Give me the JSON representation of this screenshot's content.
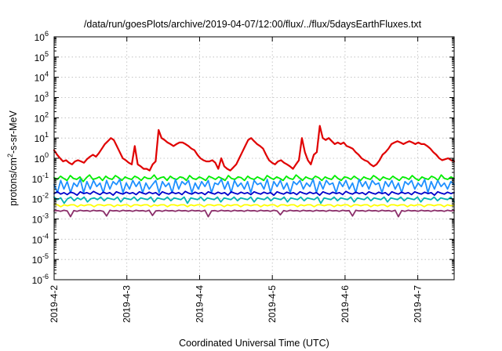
{
  "chart_data": {
    "type": "line",
    "title": "/data/run/goesPlots/archive/2019-04-07/12:00/flux/../flux/5daysEarthFluxes.txt",
    "xlabel": "Coordinated Universal Time (UTC)",
    "ylabel": {
      "prefix": "protons/cm",
      "sup": "2",
      "suffix": "-s-sr-MeV"
    },
    "yscale": "log",
    "ylim": [
      1e-06,
      1000000.0
    ],
    "yticks": [
      {
        "exp": "-6",
        "value": 1e-06
      },
      {
        "exp": "-5",
        "value": 1e-05
      },
      {
        "exp": "-4",
        "value": 0.0001
      },
      {
        "exp": "-3",
        "value": 0.001
      },
      {
        "exp": "-2",
        "value": 0.01
      },
      {
        "exp": "-1",
        "value": 0.1
      },
      {
        "exp": "0",
        "value": 1
      },
      {
        "exp": "1",
        "value": 10
      },
      {
        "exp": "2",
        "value": 100
      },
      {
        "exp": "3",
        "value": 1000
      },
      {
        "exp": "4",
        "value": 10000.0
      },
      {
        "exp": "5",
        "value": 100000.0
      },
      {
        "exp": "6",
        "value": 1000000.0
      }
    ],
    "ytick_base": "10",
    "xlim": [
      "2019-04-02T00:00",
      "2019-04-07T12:00"
    ],
    "xticks": [
      "2019-4-2",
      "2019-4-3",
      "2019-4-4",
      "2019-4-5",
      "2019-4-6",
      "2019-4-7"
    ],
    "grid": true,
    "series": [
      {
        "color": "#e00000",
        "x_start": "2019-04-02T00:00",
        "x_end": "2019-04-07T12:00",
        "values": [
          2.5,
          1.5,
          1.0,
          0.7,
          0.8,
          0.6,
          0.5,
          0.7,
          0.8,
          0.7,
          0.6,
          0.9,
          1.2,
          1.5,
          1.2,
          1.8,
          3.0,
          5.0,
          7.0,
          10.0,
          8.0,
          4.0,
          2.0,
          1.0,
          0.8,
          0.6,
          0.5,
          4.0,
          0.5,
          0.4,
          0.3,
          0.3,
          0.25,
          0.5,
          0.7,
          25.0,
          10.0,
          8.0,
          6.0,
          5.0,
          4.0,
          5.0,
          6.0,
          6.0,
          5.0,
          4.0,
          3.0,
          2.5,
          1.5,
          1.0,
          0.8,
          0.7,
          0.7,
          0.8,
          0.6,
          0.3,
          1.0,
          0.4,
          0.3,
          0.25,
          0.35,
          0.5,
          1.0,
          2.0,
          4.0,
          8.0,
          10.0,
          7.0,
          5.0,
          4.0,
          3.0,
          1.5,
          0.8,
          0.6,
          0.5,
          0.7,
          0.8,
          0.6,
          0.5,
          0.4,
          0.3,
          0.5,
          0.8,
          10.0,
          2.0,
          0.8,
          0.5,
          1.5,
          2.0,
          40.0,
          10.0,
          8.0,
          10.0,
          7.0,
          5.0,
          6.0,
          5.0,
          6.0,
          4.0,
          3.5,
          3.0,
          2.0,
          1.5,
          1.0,
          0.8,
          0.7,
          0.5,
          0.4,
          0.5,
          0.8,
          1.5,
          2.0,
          3.0,
          5.0,
          6.0,
          7.0,
          6.0,
          5.0,
          6.0,
          7.0,
          6.0,
          5.0,
          6.0,
          5.0,
          5.0,
          4.0,
          3.0,
          2.0,
          1.5,
          1.0,
          0.8,
          0.9,
          1.0,
          0.8,
          0.7
        ]
      },
      {
        "color": "#00ee00",
        "x_start": "2019-04-02T00:00",
        "x_end": "2019-04-07T12:00",
        "values": [
          0.11,
          0.09,
          0.13,
          0.1,
          0.08,
          0.14,
          0.1,
          0.09,
          0.12,
          0.07,
          0.11,
          0.15,
          0.09,
          0.1,
          0.12,
          0.08,
          0.13,
          0.1,
          0.09,
          0.14,
          0.11,
          0.08,
          0.12,
          0.1,
          0.09,
          0.13,
          0.11,
          0.08,
          0.12,
          0.1,
          0.1,
          0.15,
          0.09,
          0.11,
          0.12,
          0.08,
          0.13,
          0.1,
          0.09,
          0.12,
          0.11,
          0.08,
          0.14,
          0.1,
          0.09,
          0.12,
          0.1,
          0.08,
          0.13,
          0.11,
          0.09,
          0.12,
          0.1,
          0.08,
          0.14,
          0.1,
          0.09,
          0.12,
          0.11,
          0.08,
          0.13,
          0.1,
          0.09,
          0.12,
          0.1,
          0.08,
          0.14,
          0.11,
          0.09,
          0.12,
          0.1,
          0.08,
          0.13,
          0.1,
          0.09,
          0.15,
          0.11,
          0.08,
          0.12,
          0.1,
          0.09,
          0.13,
          0.11,
          0.08,
          0.12,
          0.1,
          0.09,
          0.14,
          0.1,
          0.08,
          0.12,
          0.11,
          0.09,
          0.13,
          0.1,
          0.08,
          0.12,
          0.1,
          0.09,
          0.14,
          0.11,
          0.08,
          0.12,
          0.1,
          0.09,
          0.13,
          0.1,
          0.08,
          0.12,
          0.11,
          0.09,
          0.14,
          0.1,
          0.08,
          0.12,
          0.1,
          0.09,
          0.13,
          0.11,
          0.08,
          0.15,
          0.1,
          0.09,
          0.12,
          0.1
        ]
      },
      {
        "color": "#1e90ff",
        "x_start": "2019-04-02T00:00",
        "x_end": "2019-04-07T12:00",
        "values": [
          0.05,
          0.02,
          0.08,
          0.03,
          0.07,
          0.02,
          0.06,
          0.04,
          0.09,
          0.02,
          0.07,
          0.03,
          0.08,
          0.04,
          0.06,
          0.02,
          0.08,
          0.03,
          0.07,
          0.05,
          0.09,
          0.02,
          0.06,
          0.03,
          0.08,
          0.04,
          0.07,
          0.02,
          0.06,
          0.03,
          0.05,
          0.08,
          0.02,
          0.07,
          0.04,
          0.06,
          0.02,
          0.09,
          0.03,
          0.07,
          0.05,
          0.08,
          0.02,
          0.06,
          0.03,
          0.07,
          0.04,
          0.08,
          0.02,
          0.06,
          0.05,
          0.09,
          0.03,
          0.07,
          0.02,
          0.08,
          0.04,
          0.06,
          0.03,
          0.07,
          0.02,
          0.08,
          0.05,
          0.06,
          0.03,
          0.09,
          0.02,
          0.07,
          0.04,
          0.08,
          0.03,
          0.06,
          0.02,
          0.07,
          0.05,
          0.08,
          0.03,
          0.06,
          0.04,
          0.09,
          0.02,
          0.07,
          0.03,
          0.08,
          0.05,
          0.06,
          0.02,
          0.07,
          0.04,
          0.08,
          0.03,
          0.06,
          0.02,
          0.09,
          0.04,
          0.07,
          0.03,
          0.08,
          0.05,
          0.06,
          0.02,
          0.07,
          0.04,
          0.08,
          0.03,
          0.06,
          0.02,
          0.07,
          0.05,
          0.08,
          0.03,
          0.06,
          0.04,
          0.09,
          0.02,
          0.07,
          0.03,
          0.08,
          0.04,
          0.06,
          0.03,
          0.07,
          0.05
        ]
      },
      {
        "color": "#0000cc",
        "x_start": "2019-04-02T00:00",
        "x_end": "2019-04-07T12:00",
        "values": [
          0.018,
          0.022,
          0.017,
          0.02,
          0.016,
          0.021,
          0.019,
          0.015,
          0.022,
          0.018,
          0.02,
          0.017,
          0.023,
          0.019,
          0.016,
          0.021,
          0.018,
          0.02,
          0.015,
          0.022,
          0.019,
          0.017,
          0.021,
          0.018,
          0.02,
          0.016,
          0.022,
          0.019,
          0.017,
          0.021,
          0.018,
          0.02,
          0.015,
          0.022,
          0.019,
          0.017,
          0.021,
          0.018,
          0.02,
          0.016,
          0.023,
          0.019,
          0.017,
          0.021,
          0.018,
          0.02,
          0.016,
          0.022,
          0.019,
          0.017,
          0.021,
          0.018,
          0.02,
          0.015,
          0.022,
          0.019,
          0.017,
          0.021,
          0.018,
          0.02,
          0.016,
          0.022,
          0.019,
          0.017,
          0.021,
          0.018,
          0.02,
          0.015,
          0.022,
          0.019,
          0.017,
          0.021,
          0.018,
          0.02,
          0.016,
          0.022,
          0.019,
          0.017,
          0.021,
          0.018,
          0.02,
          0.015,
          0.022,
          0.019,
          0.017,
          0.021,
          0.018,
          0.02,
          0.016,
          0.023,
          0.019,
          0.017,
          0.021,
          0.018,
          0.02,
          0.016,
          0.022,
          0.019,
          0.017,
          0.021,
          0.018,
          0.02,
          0.015,
          0.022,
          0.019,
          0.017,
          0.021,
          0.018,
          0.02,
          0.016,
          0.022,
          0.019,
          0.017,
          0.021,
          0.018,
          0.02,
          0.015,
          0.022,
          0.019,
          0.017,
          0.021,
          0.018,
          0.02
        ]
      },
      {
        "color": "#00b3b3",
        "x_start": "2019-04-02T00:00",
        "x_end": "2019-04-07T12:00",
        "values": [
          0.012,
          0.009,
          0.011,
          0.006,
          0.01,
          0.012,
          0.008,
          0.011,
          0.009,
          0.012,
          0.007,
          0.01,
          0.011,
          0.009,
          0.012,
          0.008,
          0.011,
          0.01,
          0.009,
          0.012,
          0.007,
          0.011,
          0.01,
          0.009,
          0.012,
          0.008,
          0.011,
          0.01,
          0.009,
          0.012,
          0.007,
          0.011,
          0.01,
          0.009,
          0.012,
          0.008,
          0.011,
          0.01,
          0.009,
          0.012,
          0.006,
          0.011,
          0.01,
          0.009,
          0.012,
          0.008,
          0.011,
          0.01,
          0.009,
          0.012,
          0.007,
          0.011,
          0.01,
          0.009,
          0.012,
          0.008,
          0.011,
          0.01,
          0.009,
          0.012,
          0.007,
          0.011,
          0.01,
          0.009,
          0.012,
          0.008,
          0.011,
          0.01,
          0.009,
          0.012,
          0.007,
          0.011,
          0.01,
          0.009,
          0.012,
          0.008,
          0.011,
          0.01,
          0.009,
          0.012,
          0.006,
          0.011,
          0.01,
          0.009,
          0.012,
          0.008,
          0.011,
          0.01,
          0.009,
          0.012,
          0.007,
          0.011,
          0.01,
          0.009,
          0.012,
          0.008,
          0.011,
          0.01,
          0.009,
          0.012,
          0.007,
          0.011,
          0.01,
          0.009,
          0.012,
          0.008,
          0.011,
          0.01,
          0.009,
          0.012,
          0.007,
          0.011,
          0.01,
          0.009,
          0.012,
          0.008,
          0.011,
          0.01,
          0.009,
          0.012,
          0.007
        ]
      },
      {
        "color": "#ffff00",
        "x_start": "2019-04-02T00:00",
        "x_end": "2019-04-07T12:00",
        "values": [
          0.005,
          0.005,
          0.004,
          0.005,
          0.0045,
          0.005,
          0.005,
          0.004,
          0.005,
          0.0045,
          0.005,
          0.005,
          0.004,
          0.005,
          0.005,
          0.0045,
          0.005,
          0.005,
          0.004,
          0.005,
          0.0045,
          0.005,
          0.005,
          0.004,
          0.005,
          0.005,
          0.0045,
          0.005,
          0.005,
          0.004,
          0.005,
          0.0045,
          0.005,
          0.005,
          0.004,
          0.005,
          0.005,
          0.0045,
          0.005,
          0.005,
          0.004,
          0.005,
          0.0045,
          0.005,
          0.005,
          0.004,
          0.005,
          0.005,
          0.0045,
          0.005,
          0.005,
          0.004,
          0.005,
          0.0045,
          0.005,
          0.005,
          0.004,
          0.005,
          0.005,
          0.0045,
          0.005,
          0.005,
          0.004,
          0.005,
          0.0045,
          0.005,
          0.005,
          0.004,
          0.005,
          0.005,
          0.0045,
          0.005,
          0.005,
          0.004,
          0.005,
          0.0045,
          0.005,
          0.005,
          0.004,
          0.005,
          0.005,
          0.0045,
          0.005,
          0.005,
          0.004,
          0.005,
          0.0045,
          0.005,
          0.005,
          0.004,
          0.005,
          0.005,
          0.0045,
          0.005,
          0.005,
          0.004,
          0.005,
          0.0045,
          0.005,
          0.005,
          0.004,
          0.005,
          0.005,
          0.0045,
          0.005,
          0.005,
          0.004,
          0.005,
          0.0045,
          0.005,
          0.005,
          0.004,
          0.005,
          0.005,
          0.0045,
          0.005,
          0.005,
          0.004,
          0.005,
          0.0045,
          0.005
        ]
      },
      {
        "color": "#8b2f6a",
        "x_start": "2019-04-02T00:00",
        "x_end": "2019-04-07T12:00",
        "values": [
          0.0025,
          0.0026,
          0.0024,
          0.0027,
          0.0025,
          0.0013,
          0.0026,
          0.0024,
          0.0027,
          0.0025,
          0.0026,
          0.0024,
          0.0027,
          0.0025,
          0.0026,
          0.0024,
          0.0014,
          0.0027,
          0.0025,
          0.0026,
          0.0024,
          0.0027,
          0.0025,
          0.0026,
          0.0024,
          0.0027,
          0.0025,
          0.0026,
          0.0024,
          0.0027,
          0.0015,
          0.0025,
          0.0026,
          0.0024,
          0.0027,
          0.0025,
          0.0026,
          0.0024,
          0.0027,
          0.0025,
          0.0026,
          0.0024,
          0.0027,
          0.0025,
          0.0026,
          0.0024,
          0.0027,
          0.0013,
          0.0025,
          0.0026,
          0.0024,
          0.0027,
          0.0025,
          0.0026,
          0.0024,
          0.0027,
          0.0025,
          0.0026,
          0.0024,
          0.0027,
          0.0025,
          0.0026,
          0.0024,
          0.0027,
          0.0025,
          0.0026,
          0.0024,
          0.0027,
          0.0025,
          0.0016,
          0.0026,
          0.0024,
          0.0027,
          0.0025,
          0.0026,
          0.0024,
          0.0027,
          0.0025,
          0.0026,
          0.0024,
          0.0027,
          0.0025,
          0.0026,
          0.0024,
          0.0027,
          0.0025,
          0.0026,
          0.0024,
          0.0027,
          0.0025,
          0.0026,
          0.0014,
          0.0027,
          0.0025,
          0.0026,
          0.0024,
          0.0027,
          0.0025,
          0.0026,
          0.0024,
          0.0027,
          0.0025,
          0.0026,
          0.0024,
          0.0027,
          0.0013,
          0.0026,
          0.0024,
          0.0027,
          0.0025,
          0.0026,
          0.0024,
          0.0027,
          0.0025,
          0.0026,
          0.0024,
          0.0027,
          0.0025,
          0.0026,
          0.0024,
          0.0027,
          0.0025,
          0.0026
        ]
      }
    ]
  }
}
